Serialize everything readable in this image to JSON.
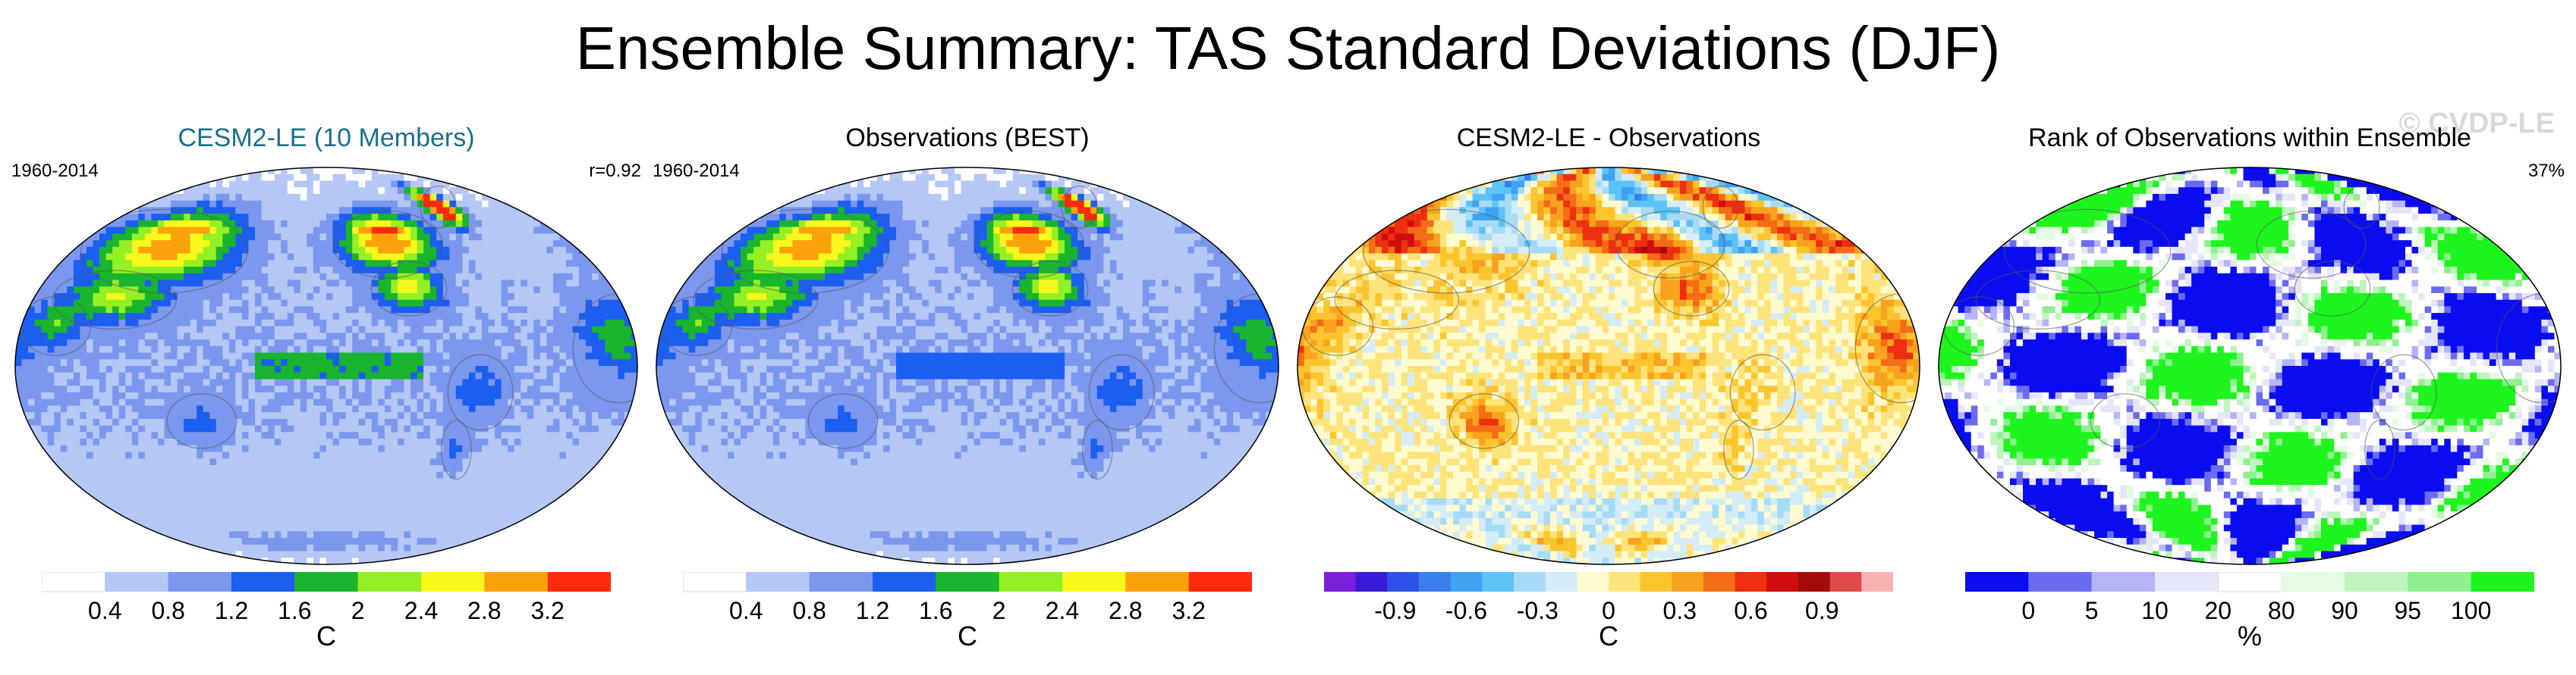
{
  "title": "Ensemble Summary: TAS Standard Deviations (DJF)",
  "watermark": "© CVDP-LE",
  "colors": {
    "title_cesm": "#1a6f8a",
    "land_outline": "#555555",
    "map_border": "#000000"
  },
  "chart_data": [
    {
      "type": "heatmap",
      "title": "CESM2-LE (10 Members)",
      "period": "1960-2014",
      "stat": "r=0.92",
      "unit": "C",
      "field": "sd_model",
      "levels": [
        "0.4",
        "0.8",
        "1.2",
        "1.6",
        "2",
        "2.4",
        "2.8",
        "3.2"
      ],
      "colors": [
        "#ffffff",
        "#b4c7f5",
        "#7b97ee",
        "#1c5ef0",
        "#19b52e",
        "#94ef24",
        "#f8f81d",
        "#fba20a",
        "#fd2b0c"
      ]
    },
    {
      "type": "heatmap",
      "title": "Observations (BEST)",
      "period": "1960-2014",
      "stat": "",
      "unit": "C",
      "field": "sd_obs",
      "levels": [
        "0.4",
        "0.8",
        "1.2",
        "1.6",
        "2",
        "2.4",
        "2.8",
        "3.2"
      ],
      "colors": [
        "#ffffff",
        "#b4c7f5",
        "#7b97ee",
        "#1c5ef0",
        "#19b52e",
        "#94ef24",
        "#f8f81d",
        "#fba20a",
        "#fd2b0c"
      ]
    },
    {
      "type": "heatmap",
      "title": "CESM2-LE - Observations",
      "period": "",
      "stat": "",
      "unit": "C",
      "field": "diff",
      "levels": [
        "-0.9",
        "-0.6",
        "-0.3",
        "0",
        "0.3",
        "0.6",
        "0.9"
      ],
      "colors": [
        "#7a1fdc",
        "#3a1cd8",
        "#2e52e5",
        "#3b7ded",
        "#3fa2f3",
        "#5cc3f7",
        "#a6dbf7",
        "#d3ecf7",
        "#fffbd0",
        "#fde37a",
        "#fcc52e",
        "#f9a21d",
        "#f46c16",
        "#ee2f10",
        "#d10e0e",
        "#a60b0b",
        "#e04a4a",
        "#f7b3b3"
      ]
    },
    {
      "type": "heatmap",
      "title": "Rank of Observations within Ensemble",
      "period": "",
      "stat": "37%",
      "unit": "%",
      "field": "rank",
      "levels": [
        "0",
        "5",
        "10",
        "20",
        "80",
        "90",
        "95",
        "100"
      ],
      "colors": [
        "#0a0df0",
        "#6b6bf2",
        "#b4b4f6",
        "#e6e6fb",
        "#ffffff",
        "#e4fbe4",
        "#bdf5bd",
        "#8ef08e",
        "#1ef51e"
      ]
    }
  ]
}
